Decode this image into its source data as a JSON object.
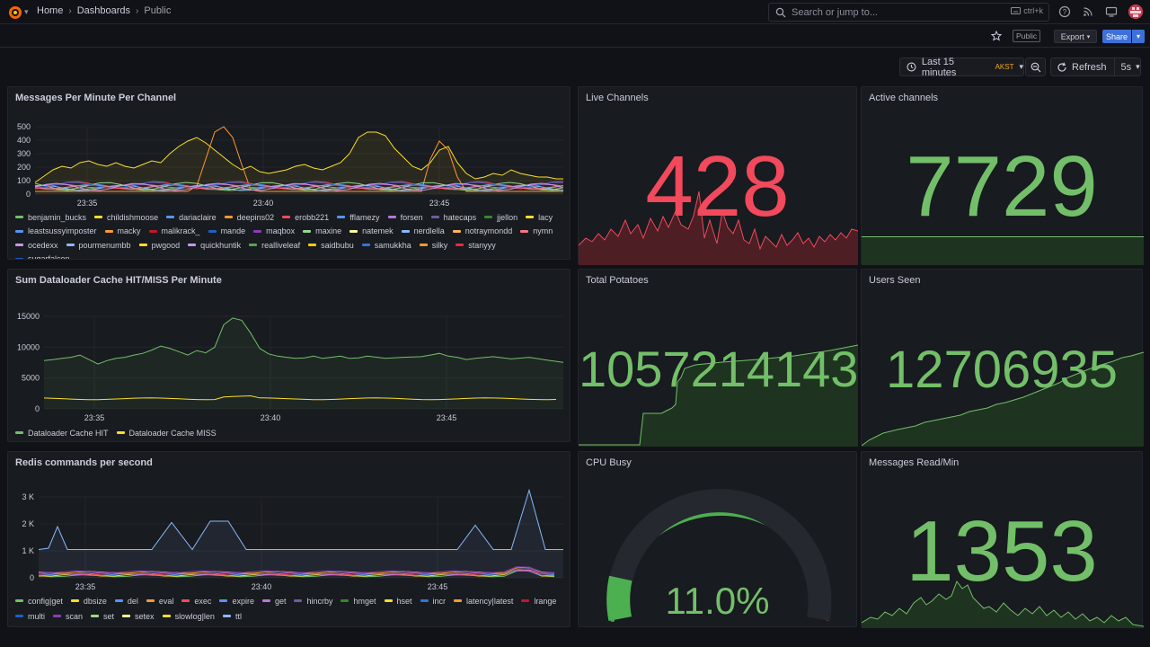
{
  "header": {
    "breadcrumbs": [
      "Home",
      "Dashboards",
      "Public"
    ],
    "search_placeholder": "Search or jump to...",
    "search_shortcut": "ctrl+k"
  },
  "toolbar": {
    "public_badge": "Public",
    "export_label": "Export",
    "share_label": "Share"
  },
  "time": {
    "range_label": "Last 15 minutes",
    "timezone": "AKST",
    "refresh_label": "Refresh",
    "refresh_interval": "5s"
  },
  "panels": {
    "messages": {
      "title": "Messages Per Minute Per Channel",
      "y_ticks": [
        "500",
        "400",
        "300",
        "200",
        "100",
        "0"
      ],
      "x_ticks": [
        "23:35",
        "23:40",
        "23:45"
      ],
      "legend": [
        {
          "name": "benjamin_bucks",
          "color": "#73bf69"
        },
        {
          "name": "childishmoose",
          "color": "#fade2a"
        },
        {
          "name": "dariaclaire",
          "color": "#5794f2"
        },
        {
          "name": "deepins02",
          "color": "#ff9830"
        },
        {
          "name": "erobb221",
          "color": "#f2495c"
        },
        {
          "name": "fflamezy",
          "color": "#5794f2"
        },
        {
          "name": "forsen",
          "color": "#b877d9"
        },
        {
          "name": "hatecaps",
          "color": "#705da0"
        },
        {
          "name": "jjellon",
          "color": "#37872d"
        },
        {
          "name": "lacy",
          "color": "#fade2a"
        },
        {
          "name": "leastsussyimposter",
          "color": "#5794f2"
        },
        {
          "name": "macky",
          "color": "#ff9830"
        },
        {
          "name": "malikrack_",
          "color": "#c4162a"
        },
        {
          "name": "mande",
          "color": "#1f60c4"
        },
        {
          "name": "maqbox",
          "color": "#8f3bb8"
        },
        {
          "name": "maxine",
          "color": "#96d98d"
        },
        {
          "name": "natemek",
          "color": "#fff899"
        },
        {
          "name": "nerdlella",
          "color": "#8ab8ff"
        },
        {
          "name": "notraymondd",
          "color": "#ffb357"
        },
        {
          "name": "nymn",
          "color": "#ff7383"
        },
        {
          "name": "ocedexx",
          "color": "#ca95e5"
        },
        {
          "name": "pourmenumbb",
          "color": "#8ab8ff"
        },
        {
          "name": "pwgood",
          "color": "#fade2a"
        },
        {
          "name": "quickhuntik",
          "color": "#ca95e5"
        },
        {
          "name": "realliveleaf",
          "color": "#56a64b"
        },
        {
          "name": "saidbubu",
          "color": "#f2cc0c"
        },
        {
          "name": "samukkha",
          "color": "#3274d9"
        },
        {
          "name": "silky",
          "color": "#ff9830"
        },
        {
          "name": "stanyyy",
          "color": "#e02f44"
        },
        {
          "name": "sugarfalcon",
          "color": "#1f60c4"
        }
      ]
    },
    "live_channels": {
      "title": "Live Channels",
      "value": "428",
      "color": "#f2495c"
    },
    "active_channels": {
      "title": "Active channels",
      "value": "7729",
      "color": "#73bf69"
    },
    "dataloader": {
      "title": "Sum Dataloader Cache HIT/MISS Per Minute",
      "y_ticks": [
        "15000",
        "10000",
        "5000",
        "0"
      ],
      "x_ticks": [
        "23:35",
        "23:40",
        "23:45"
      ],
      "legend": [
        {
          "name": "Dataloader Cache HIT",
          "color": "#73bf69"
        },
        {
          "name": "Dataloader Cache MISS",
          "color": "#fade2a"
        }
      ]
    },
    "total_potatoes": {
      "title": "Total Potatoes",
      "value": "1057214143",
      "color": "#73bf69"
    },
    "users_seen": {
      "title": "Users Seen",
      "value": "12706935",
      "color": "#73bf69"
    },
    "redis": {
      "title": "Redis commands per second",
      "y_ticks": [
        "3 K",
        "2 K",
        "1 K",
        "0"
      ],
      "x_ticks": [
        "23:35",
        "23:40",
        "23:45"
      ],
      "legend": [
        {
          "name": "config|get",
          "color": "#73bf69"
        },
        {
          "name": "dbsize",
          "color": "#fade2a"
        },
        {
          "name": "del",
          "color": "#5794f2"
        },
        {
          "name": "eval",
          "color": "#ff9830"
        },
        {
          "name": "exec",
          "color": "#f2495c"
        },
        {
          "name": "expire",
          "color": "#5794f2"
        },
        {
          "name": "get",
          "color": "#b877d9"
        },
        {
          "name": "hincrby",
          "color": "#705da0"
        },
        {
          "name": "hmget",
          "color": "#37872d"
        },
        {
          "name": "hset",
          "color": "#fade2a"
        },
        {
          "name": "incr",
          "color": "#3274d9"
        },
        {
          "name": "latency|latest",
          "color": "#ff9830"
        },
        {
          "name": "lrange",
          "color": "#c4162a"
        },
        {
          "name": "multi",
          "color": "#1f60c4"
        },
        {
          "name": "scan",
          "color": "#8f3bb8"
        },
        {
          "name": "set",
          "color": "#96d98d"
        },
        {
          "name": "setex",
          "color": "#fff899"
        },
        {
          "name": "slowlog|len",
          "color": "#fade2a"
        },
        {
          "name": "ttl",
          "color": "#8ab8ff"
        }
      ]
    },
    "cpu_busy": {
      "title": "CPU Busy",
      "value": "11.0%",
      "fraction": 0.11,
      "color": "#73bf69"
    },
    "messages_read": {
      "title": "Messages Read/Min",
      "value": "1353",
      "color": "#73bf69"
    }
  },
  "colors": {
    "background": "#111217",
    "panel": "#181b1f",
    "green": "#73bf69",
    "red": "#f2495c",
    "accent": "#3d71d9"
  },
  "icons": [
    "grafana-logo-icon",
    "search-icon",
    "help-icon",
    "rss-icon",
    "monitor-icon",
    "avatar",
    "star-icon",
    "clock-icon",
    "zoom-out-icon",
    "refresh-icon"
  ]
}
